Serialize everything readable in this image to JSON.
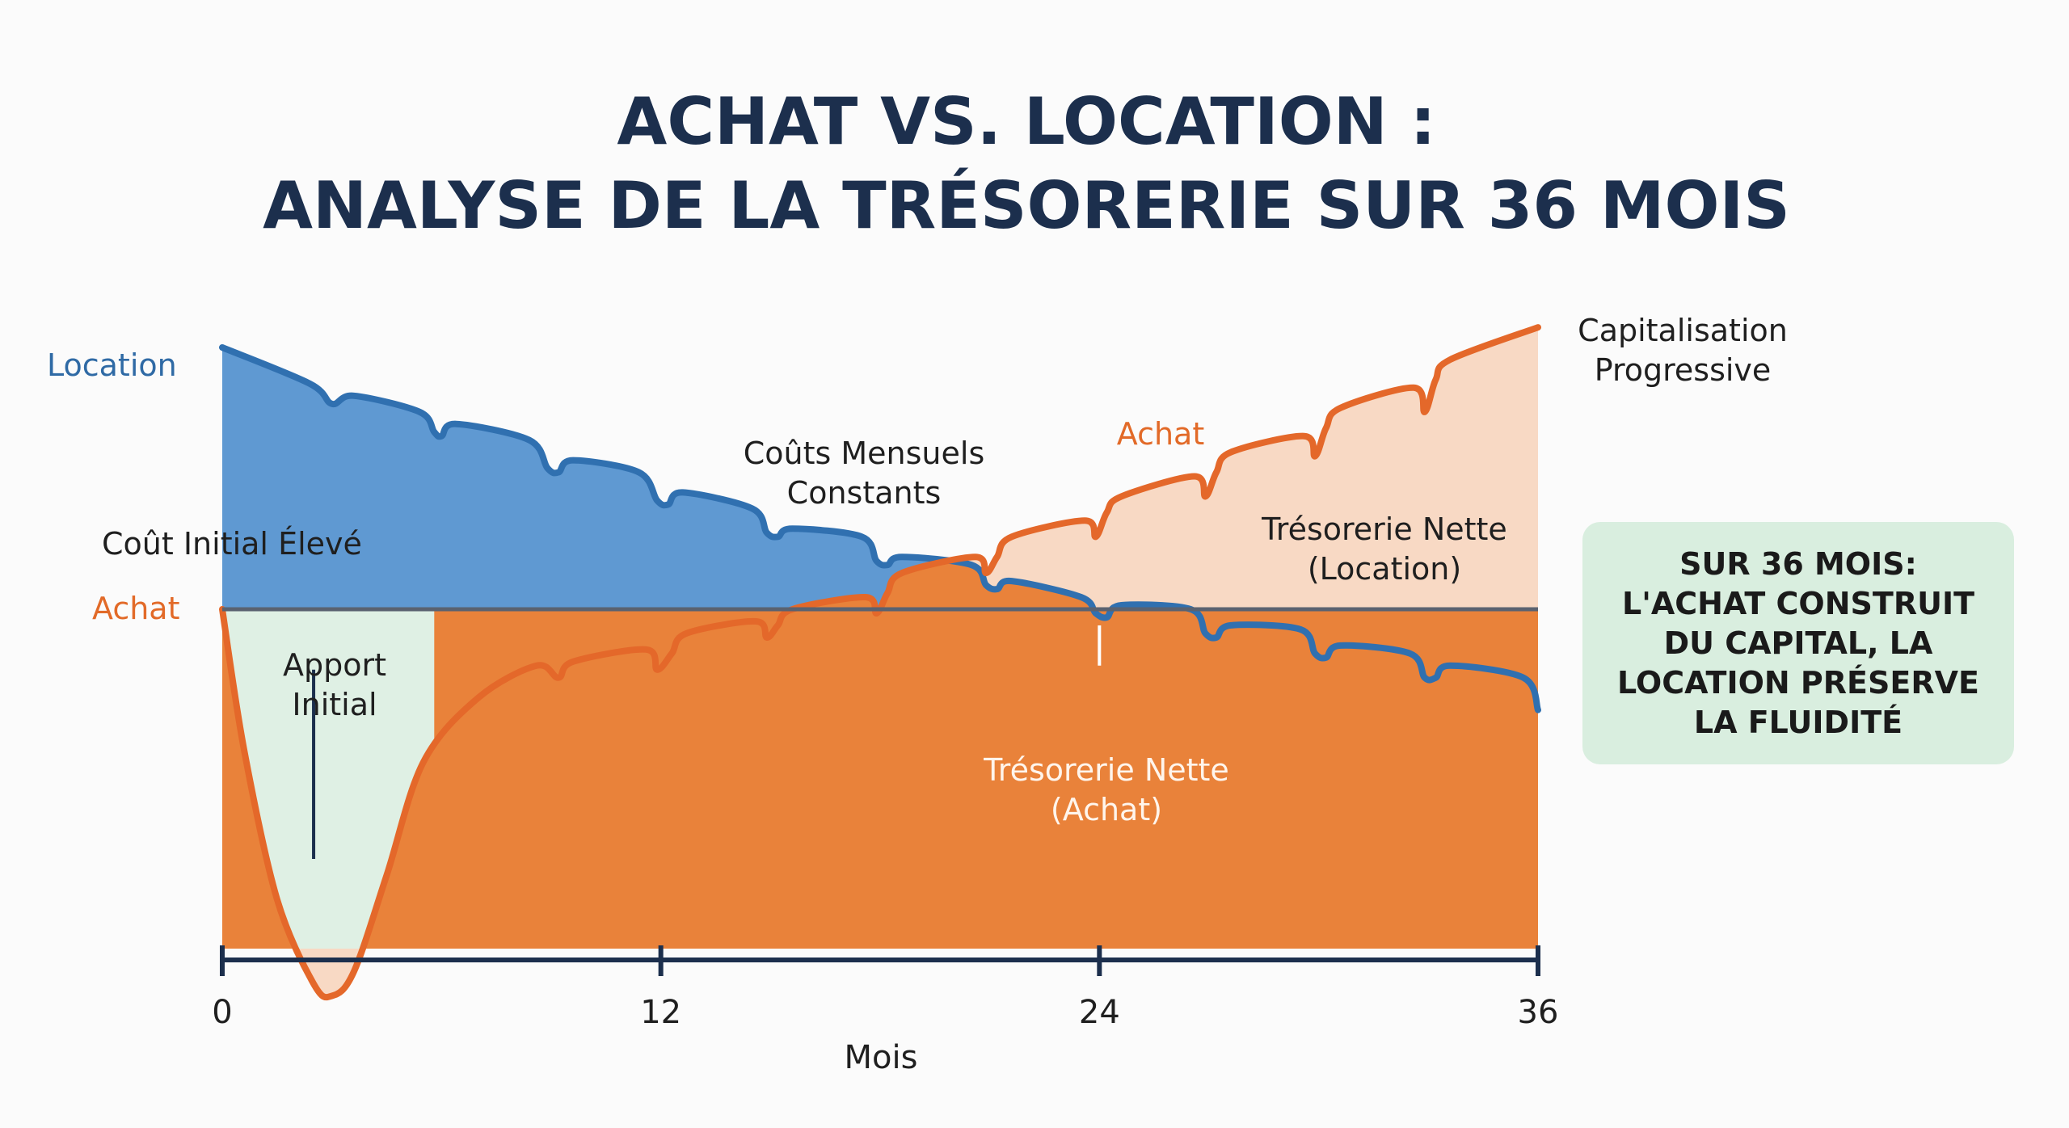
{
  "title": [
    "ACHAT VS. LOCATION :",
    "ANALYSE DE LA TRÉSORERIE SUR 36 MOIS"
  ],
  "chart_data": {
    "type": "area",
    "xlabel": "Mois",
    "xlim": [
      0,
      36
    ],
    "ylim": [
      -1.0,
      0.85
    ],
    "xticks": [
      "0",
      "12",
      "24",
      "36"
    ],
    "baseline": 0,
    "series": [
      {
        "name": "Location",
        "color": "#3070b0",
        "x": [
          0,
          2.4,
          3,
          3.6,
          5.4,
          5.8,
          6,
          6.4,
          8.4,
          8.9,
          9.2,
          9.6,
          11.4,
          11.9,
          12.2,
          12.6,
          14.5,
          14.9,
          15.2,
          15.6,
          17.5,
          17.9,
          18.2,
          18.6,
          20.5,
          20.9,
          21.2,
          21.6,
          23.5,
          23.9,
          24.2,
          24.6,
          26.5,
          26.9,
          27.2,
          27.6,
          29.5,
          29.9,
          30.2,
          30.6,
          32.5,
          32.9,
          33.2,
          33.6,
          35.6,
          36
        ],
        "y": [
          0.65,
          0.56,
          0.51,
          0.53,
          0.49,
          0.44,
          0.43,
          0.46,
          0.42,
          0.35,
          0.34,
          0.37,
          0.34,
          0.27,
          0.26,
          0.29,
          0.25,
          0.19,
          0.18,
          0.2,
          0.18,
          0.12,
          0.11,
          0.13,
          0.11,
          0.06,
          0.05,
          0.07,
          0.03,
          -0.01,
          -0.02,
          0.01,
          0.0,
          -0.06,
          -0.07,
          -0.04,
          -0.05,
          -0.11,
          -0.12,
          -0.09,
          -0.11,
          -0.17,
          -0.17,
          -0.14,
          -0.17,
          -0.25
        ]
      },
      {
        "name": "Achat",
        "color": "#e4682a",
        "x": [
          0,
          0.6,
          1.5,
          2.5,
          3,
          3.6,
          4.5,
          5.5,
          7,
          8.6,
          9.2,
          9.6,
          11.6,
          11.9,
          12.3,
          12.7,
          14.6,
          14.9,
          15.2,
          15.6,
          17.6,
          17.9,
          18.2,
          18.6,
          20.6,
          20.9,
          21.2,
          21.6,
          23.6,
          23.9,
          24.2,
          24.6,
          26.6,
          26.9,
          27.2,
          27.6,
          29.6,
          29.9,
          30.2,
          30.6,
          32.6,
          32.9,
          33.2,
          33.6,
          36
        ],
        "y": [
          0.0,
          -0.35,
          -0.72,
          -0.93,
          -0.96,
          -0.9,
          -0.66,
          -0.38,
          -0.22,
          -0.14,
          -0.17,
          -0.13,
          -0.1,
          -0.15,
          -0.11,
          -0.06,
          -0.03,
          -0.07,
          -0.04,
          0.0,
          0.03,
          -0.01,
          0.04,
          0.09,
          0.13,
          0.09,
          0.13,
          0.18,
          0.22,
          0.18,
          0.24,
          0.28,
          0.33,
          0.28,
          0.34,
          0.39,
          0.43,
          0.38,
          0.45,
          0.5,
          0.55,
          0.49,
          0.57,
          0.62,
          0.7
        ]
      }
    ],
    "annotations": [
      {
        "text": [
          "Location"
        ],
        "kind": "series-label-location"
      },
      {
        "text": [
          "Achat"
        ],
        "kind": "series-label-achat"
      },
      {
        "text": [
          "Achat"
        ],
        "kind": "series-label-achat-right"
      },
      {
        "text": [
          "Capitalisation",
          "Progressive"
        ],
        "kind": "capitalisation"
      },
      {
        "text": [
          "Coûts Mensuels",
          "Constants"
        ],
        "kind": "couts-mensuels"
      },
      {
        "text": [
          "Coût Initial Élevé"
        ],
        "kind": "cout-initial"
      },
      {
        "text": [
          "Apport",
          "Initial"
        ],
        "kind": "apport-initial"
      },
      {
        "text": [
          "Trésorerie Nette",
          "(Location)"
        ],
        "kind": "tresorerie-location"
      },
      {
        "text": [
          "Trésorerie Nette",
          "(Achat)"
        ],
        "kind": "tresorerie-achat"
      }
    ]
  },
  "callout": [
    "SUR 36 MOIS:",
    "L'ACHAT CONSTRUIT",
    "DU CAPITAL, LA",
    "LOCATION PRÉSERVE",
    "LA FLUIDITÉ"
  ],
  "colors": {
    "orange": "#e9823a",
    "orange_line": "#e4682a",
    "blue": "#3070b0",
    "blue_fill": "#5f99d2",
    "green_fill": "#dff0e4",
    "peach_fill": "#f8d9c4",
    "title": "#1c2f4d",
    "callout_bg": "#d9eedf"
  }
}
